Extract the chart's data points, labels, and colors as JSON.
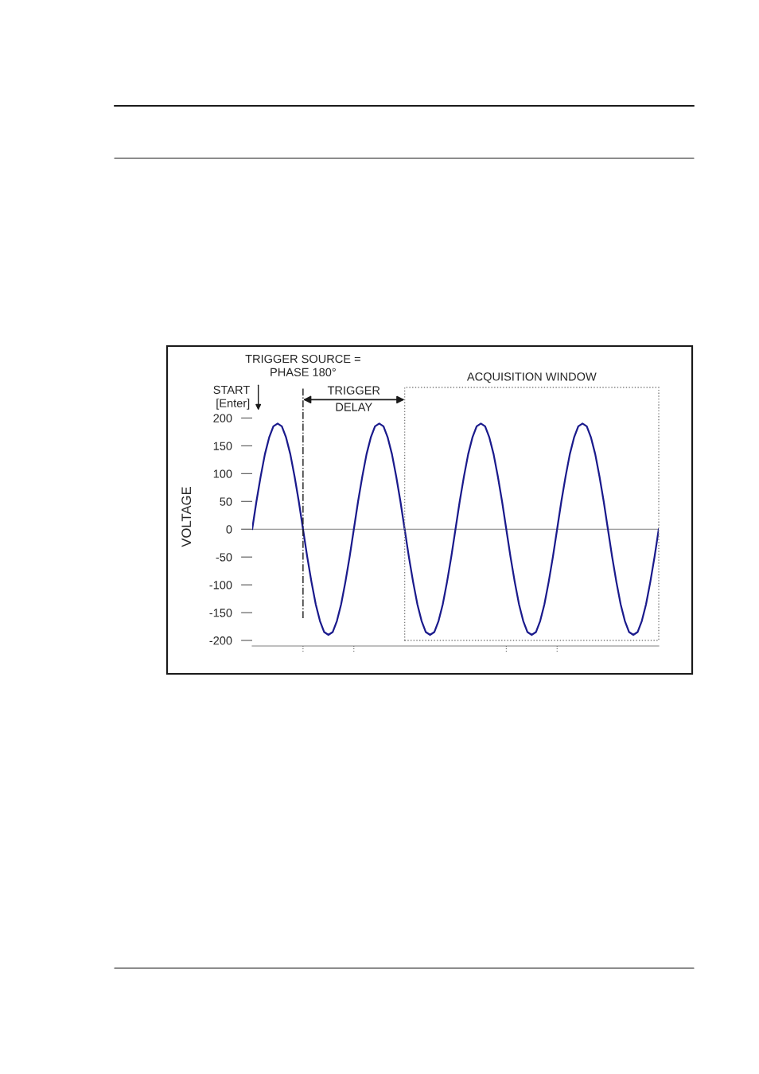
{
  "chart_data": {
    "type": "line",
    "ylabel": "VOLTAGE",
    "categories": [
      null,
      null,
      null,
      null,
      null,
      null,
      null,
      null,
      null,
      null,
      null,
      null,
      null,
      null,
      null,
      null,
      null,
      null,
      null,
      null,
      null,
      null,
      null,
      null,
      null,
      null,
      null,
      null,
      null,
      null,
      null,
      null,
      null,
      null,
      null,
      null,
      null,
      null,
      null,
      null,
      null,
      null,
      null,
      null,
      null,
      null,
      null,
      null,
      null,
      null,
      null,
      null,
      null,
      null,
      null,
      null,
      null,
      null,
      null,
      null,
      null,
      null,
      null,
      null,
      null,
      null,
      null,
      null,
      null,
      null,
      null,
      null,
      null,
      null,
      null,
      null,
      null,
      null,
      null,
      null,
      null,
      null,
      null,
      null,
      null,
      null,
      null,
      null,
      null,
      null,
      null,
      null,
      null,
      null,
      null,
      null,
      null
    ],
    "series": [
      {
        "color": "#1a1a8c",
        "values": [
          0,
          50,
          95,
          135,
          165,
          185,
          190,
          185,
          165,
          135,
          95,
          50,
          0,
          -50,
          -95,
          -135,
          -165,
          -185,
          -190,
          -185,
          -165,
          -135,
          -95,
          -50,
          0,
          50,
          95,
          135,
          165,
          185,
          190,
          185,
          165,
          135,
          95,
          50,
          0,
          -50,
          -95,
          -135,
          -165,
          -185,
          -190,
          -185,
          -165,
          -135,
          -95,
          -50,
          0,
          50,
          95,
          135,
          165,
          185,
          190,
          185,
          165,
          135,
          95,
          50,
          0,
          -50,
          -95,
          -135,
          -165,
          -185,
          -190,
          -185,
          -165,
          -135,
          -95,
          -50,
          0,
          50,
          95,
          135,
          165,
          185,
          190,
          185,
          165,
          135,
          95,
          50,
          0,
          -50,
          -95,
          -135,
          -165,
          -185,
          -190,
          -185,
          -165,
          -135,
          -95,
          -50,
          0
        ]
      }
    ],
    "ylim": [
      -210,
      255
    ],
    "yticks": [
      -200,
      -150,
      -100,
      -50,
      0,
      50,
      100,
      150,
      200
    ],
    "ref_lines": [
      {
        "axis": "y",
        "value": 0,
        "color": "#808080",
        "line_style": "solid"
      }
    ],
    "annotations": [
      "START\n[Enter]",
      "TRIGGER SOURCE =\nPHASE 180°",
      "TRIGGER\nDELAY",
      "ACQUISITION WINDOW"
    ],
    "grid": false,
    "legend": false,
    "marker": "none",
    "line_style": "solid"
  }
}
